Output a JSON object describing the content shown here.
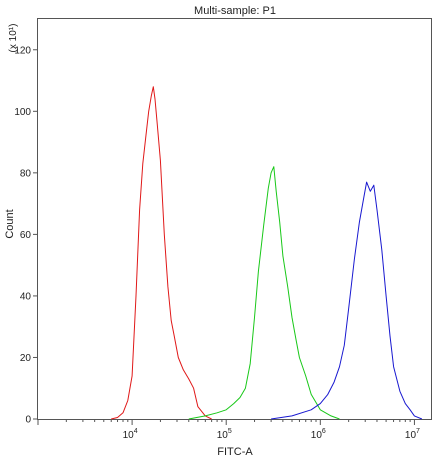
{
  "chart_data": {
    "type": "line",
    "title": "Multi-sample: P1",
    "xlabel": "FITC-A",
    "ylabel": "Count",
    "y_multiplier": "(x 10¹)",
    "x_scale": "log",
    "xlim": [
      1000,
      15000000
    ],
    "ylim": [
      0,
      130
    ],
    "x_ticks": [
      {
        "value": 10000,
        "base": "10",
        "exp": "4"
      },
      {
        "value": 100000,
        "base": "10",
        "exp": "5"
      },
      {
        "value": 1000000,
        "base": "10",
        "exp": "6"
      },
      {
        "value": 10000000,
        "base": "10",
        "exp": "7"
      }
    ],
    "y_ticks": [
      0,
      20,
      40,
      60,
      80,
      100,
      120
    ],
    "grid": false,
    "series": [
      {
        "color": "#e01818",
        "x": [
          6000,
          7000,
          8000,
          9000,
          10000,
          11000,
          12000,
          13000,
          14000,
          15000,
          16000,
          16800,
          17500,
          18500,
          20000,
          22000,
          24000,
          26000,
          28000,
          31000,
          35000,
          40000,
          45000,
          50000,
          60000,
          70000
        ],
        "y": [
          0,
          0.5,
          2,
          6,
          14,
          40,
          68,
          83,
          92,
          100,
          105,
          108,
          104,
          96,
          84,
          60,
          43,
          32,
          27,
          20,
          16,
          13,
          10,
          4,
          1,
          0
        ]
      },
      {
        "color": "#18c818",
        "x": [
          40000,
          60000,
          80000,
          100000,
          120000,
          140000,
          160000,
          180000,
          200000,
          220000,
          250000,
          280000,
          300000,
          320000,
          340000,
          370000,
          400000,
          450000,
          500000,
          550000,
          600000,
          700000,
          800000,
          1000000,
          1300000,
          1600000
        ],
        "y": [
          0,
          1,
          2,
          3,
          5,
          7,
          10,
          18,
          33,
          48,
          63,
          75,
          80,
          82,
          74,
          64,
          53,
          43,
          33,
          26,
          20,
          14,
          8,
          3,
          1,
          0
        ]
      },
      {
        "color": "#1818d0",
        "x": [
          300000,
          500000,
          800000,
          1000000,
          1200000,
          1400000,
          1600000,
          1800000,
          2000000,
          2300000,
          2600000,
          2900000,
          3100000,
          3400000,
          3700000,
          4000000,
          4500000,
          5000000,
          5500000,
          6000000,
          7000000,
          8000000,
          9000000,
          10000000,
          12000000
        ],
        "y": [
          0,
          1,
          3,
          5,
          8,
          12,
          17,
          24,
          36,
          52,
          64,
          72,
          77,
          74,
          76,
          68,
          55,
          40,
          27,
          17,
          9,
          5,
          3,
          1,
          0
        ]
      }
    ]
  }
}
